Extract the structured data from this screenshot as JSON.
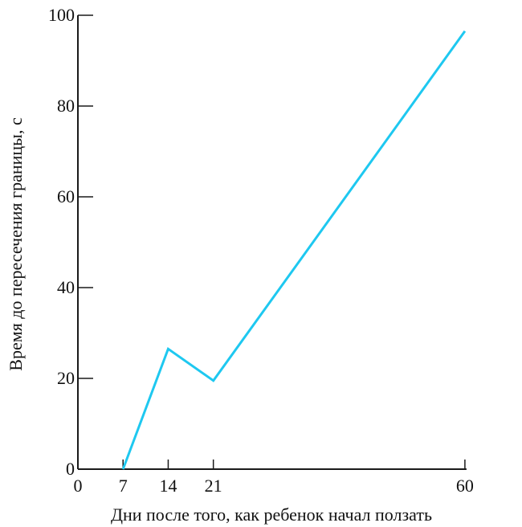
{
  "chart_data": {
    "type": "line",
    "title": "",
    "xlabel": "Дни после того, как ребенок начал ползать",
    "ylabel": "Время до пересечения границы, с",
    "x_ticks": [
      0,
      7,
      14,
      21,
      60
    ],
    "y_ticks": [
      0,
      20,
      40,
      60,
      80,
      100
    ],
    "xlim": [
      0,
      63
    ],
    "ylim": [
      0,
      100
    ],
    "grid": false,
    "series": [
      {
        "color": "#1ec8f0",
        "x": [
          7,
          14,
          21,
          60
        ],
        "y": [
          0,
          26.5,
          19.5,
          96.5
        ]
      }
    ]
  }
}
